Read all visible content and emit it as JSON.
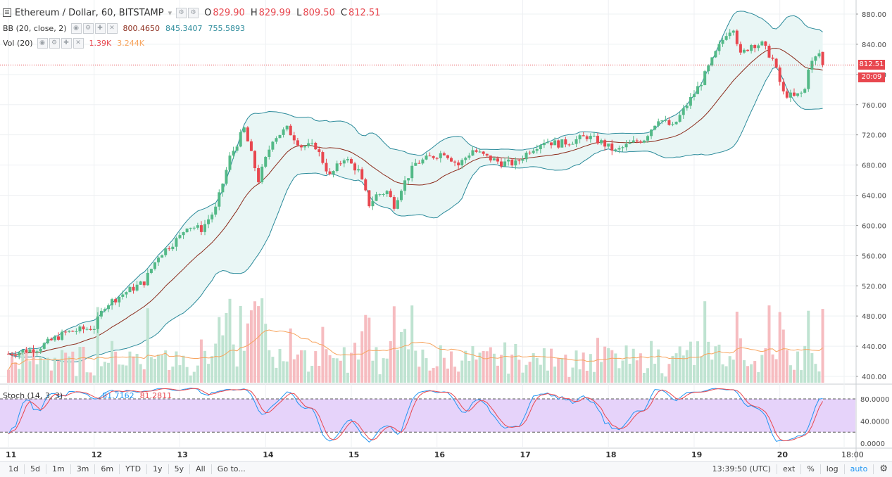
{
  "header": {
    "symbol": "Ethereum / Dollar, 60, BITSTAMP",
    "ohlc": [
      {
        "k": "O",
        "v": "829.90"
      },
      {
        "k": "H",
        "v": "829.99"
      },
      {
        "k": "L",
        "v": "809.50"
      },
      {
        "k": "C",
        "v": "812.51"
      }
    ],
    "bb": {
      "name": "BB (20, close, 2)",
      "basis": "800.4650",
      "upper": "845.3407",
      "lower": "755.5893"
    },
    "vol": {
      "name": "Vol (20)",
      "value": "1.39K",
      "ma": "3.244K"
    },
    "stoch": {
      "name": "Stoch (14, 3, 3)",
      "k": "81.7162",
      "d": "81.2811"
    }
  },
  "price_tag": "812.51",
  "time_tag": "20:09",
  "colors": {
    "up": "#53b987",
    "down": "#e8474f",
    "bb_band": "#2a8a9a",
    "bb_fill": "#e9f6f5",
    "basis": "#8b2a1a",
    "vol_ma": "#f7a35c",
    "stoch_k": "#2196f3",
    "stoch_d": "#e8474f",
    "stoch_bg": "#e6d3fa"
  },
  "chart_data": {
    "type": "candlestick",
    "title": "Ethereum / Dollar, 60, BITSTAMP",
    "price_axis": {
      "ticks": [
        "880.00",
        "840.00",
        "800.00",
        "760.00",
        "720.00",
        "680.00",
        "640.00",
        "600.00",
        "560.00",
        "520.00",
        "480.00",
        "440.00",
        "400.00"
      ],
      "range": [
        385,
        893
      ]
    },
    "stoch_axis": {
      "ticks": [
        "80.0000",
        "40.0000",
        "0.0000"
      ],
      "range": [
        -10,
        100
      ],
      "bands": [
        80,
        20
      ]
    },
    "x_ticks": [
      "11",
      "12",
      "13",
      "14",
      "15",
      "16",
      "17",
      "18",
      "19",
      "20",
      "18:00"
    ],
    "x_range_hours": [
      0,
      210
    ],
    "x_tick_hours": [
      0,
      24,
      48,
      72,
      96,
      120,
      144,
      168,
      192,
      216,
      234
    ],
    "anchors": [
      [
        0,
        430
      ],
      [
        8,
        437
      ],
      [
        16,
        458
      ],
      [
        24,
        465
      ],
      [
        27,
        494
      ],
      [
        33,
        512
      ],
      [
        38,
        525
      ],
      [
        42,
        560
      ],
      [
        48,
        585
      ],
      [
        50,
        600
      ],
      [
        54,
        595
      ],
      [
        58,
        622
      ],
      [
        62,
        690
      ],
      [
        66,
        728
      ],
      [
        70,
        660
      ],
      [
        74,
        715
      ],
      [
        78,
        728
      ],
      [
        82,
        705
      ],
      [
        86,
        705
      ],
      [
        88,
        685
      ],
      [
        90,
        665
      ],
      [
        94,
        690
      ],
      [
        98,
        672
      ],
      [
        101,
        628
      ],
      [
        103,
        640
      ],
      [
        106,
        645
      ],
      [
        108,
        627
      ],
      [
        110,
        650
      ],
      [
        114,
        682
      ],
      [
        118,
        690
      ],
      [
        122,
        697
      ],
      [
        126,
        680
      ],
      [
        130,
        700
      ],
      [
        134,
        690
      ],
      [
        138,
        683
      ],
      [
        142,
        682
      ],
      [
        146,
        700
      ],
      [
        150,
        712
      ],
      [
        154,
        708
      ],
      [
        158,
        712
      ],
      [
        162,
        718
      ],
      [
        166,
        710
      ],
      [
        170,
        698
      ],
      [
        174,
        708
      ],
      [
        178,
        715
      ],
      [
        182,
        742
      ],
      [
        186,
        730
      ],
      [
        190,
        760
      ],
      [
        194,
        790
      ],
      [
        198,
        828
      ],
      [
        201,
        855
      ],
      [
        203,
        863
      ],
      [
        205,
        825
      ],
      [
        208,
        840
      ],
      [
        211,
        840
      ],
      [
        214,
        820
      ],
      [
        216,
        790
      ],
      [
        217,
        775
      ],
      [
        220,
        770
      ],
      [
        222,
        775
      ],
      [
        223,
        780
      ],
      [
        224,
        810
      ],
      [
        227,
        828
      ],
      [
        228,
        812
      ]
    ],
    "price_range": [
      400,
      880
    ],
    "bollinger_upper_ref": 845.3407,
    "bollinger_basis_ref": 800.465,
    "bollinger_lower_ref": 755.5893,
    "last_close": 812.51,
    "last_high": 829.99,
    "last_low": 809.5,
    "last_open": 829.9
  },
  "bottom": {
    "ranges": [
      "1d",
      "5d",
      "1m",
      "3m",
      "6m",
      "YTD",
      "1y",
      "5y",
      "All"
    ],
    "goto": "Go to...",
    "clock": "13:39:50 (UTC)",
    "opts": [
      "ext",
      "%",
      "log",
      "auto"
    ]
  }
}
